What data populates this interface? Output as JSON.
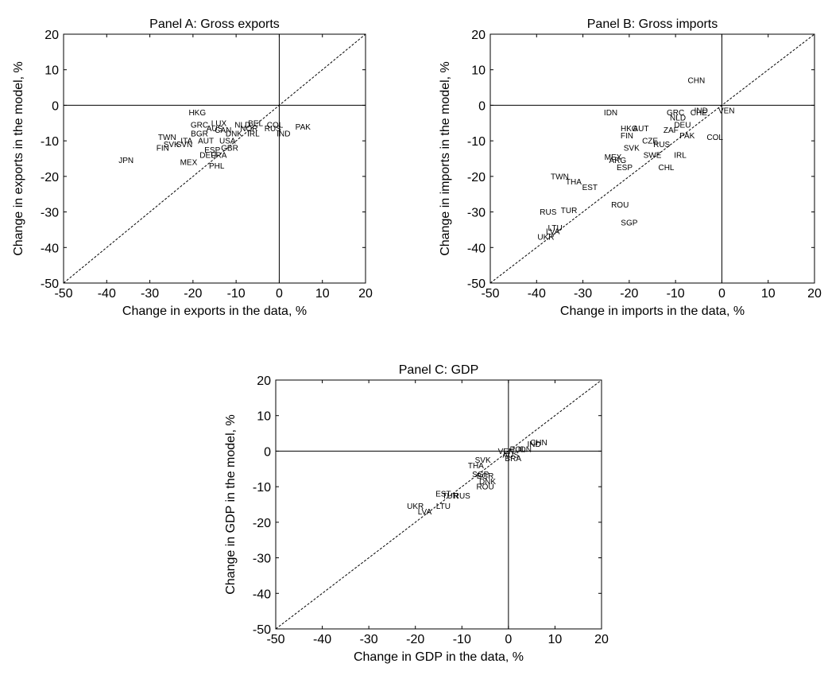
{
  "chart_data": [
    {
      "type": "scatter",
      "title": "Panel A: Gross exports",
      "xlabel": "Change in exports in the data, %",
      "ylabel": "Change in exports in the model, %",
      "xlim": [
        -50,
        20
      ],
      "ylim": [
        -50,
        20
      ],
      "xticks": [
        -50,
        -40,
        -30,
        -20,
        -10,
        0,
        10,
        20
      ],
      "yticks": [
        -50,
        -40,
        -30,
        -20,
        -10,
        0,
        10,
        20
      ],
      "reference_lines": [
        "y = x (dashed)",
        "x = 0",
        "y = 0"
      ],
      "points": [
        {
          "label": "JPN",
          "x": -35.5,
          "y": -15.5
        },
        {
          "label": "HKG",
          "x": -19,
          "y": -2
        },
        {
          "label": "GRC",
          "x": -18.5,
          "y": -5.5
        },
        {
          "label": "TWN",
          "x": -26,
          "y": -9
        },
        {
          "label": "FIN",
          "x": -27,
          "y": -12
        },
        {
          "label": "SVK",
          "x": -25,
          "y": -11
        },
        {
          "label": "SVN",
          "x": -22,
          "y": -11
        },
        {
          "label": "ITA",
          "x": -21.5,
          "y": -10
        },
        {
          "label": "BGR",
          "x": -18.5,
          "y": -8
        },
        {
          "label": "MEX",
          "x": -21,
          "y": -16
        },
        {
          "label": "PHL",
          "x": -14.5,
          "y": -17
        },
        {
          "label": "DEU",
          "x": -16.5,
          "y": -14
        },
        {
          "label": "LUX",
          "x": -14,
          "y": -5
        },
        {
          "label": "AUS",
          "x": -15,
          "y": -6.5
        },
        {
          "label": "CAN",
          "x": -13,
          "y": -7
        },
        {
          "label": "DNK",
          "x": -10.5,
          "y": -8
        },
        {
          "label": "NLD",
          "x": -8.5,
          "y": -5.5
        },
        {
          "label": "NOR",
          "x": -7,
          "y": -6.5
        },
        {
          "label": "BEL",
          "x": -5.5,
          "y": -5
        },
        {
          "label": "IRL",
          "x": -6,
          "y": -8
        },
        {
          "label": "COL",
          "x": -1,
          "y": -5.5
        },
        {
          "label": "RUS",
          "x": -1.5,
          "y": -6.5
        },
        {
          "label": "PAK",
          "x": 5.5,
          "y": -6
        },
        {
          "label": "IND",
          "x": 1,
          "y": -8
        },
        {
          "label": "USA",
          "x": -12,
          "y": -10
        },
        {
          "label": "GBR",
          "x": -11.5,
          "y": -12
        },
        {
          "label": "ESP",
          "x": -15.5,
          "y": -12.5
        },
        {
          "label": "FRA",
          "x": -14,
          "y": -14
        },
        {
          "label": "AUT",
          "x": -17,
          "y": -10
        }
      ]
    },
    {
      "type": "scatter",
      "title": "Panel B: Gross imports",
      "xlabel": "Change in imports in the data, %",
      "ylabel": "Change in imports in the model, %",
      "xlim": [
        -50,
        20
      ],
      "ylim": [
        -50,
        20
      ],
      "xticks": [
        -50,
        -40,
        -30,
        -20,
        -10,
        0,
        10,
        20
      ],
      "yticks": [
        -50,
        -40,
        -30,
        -20,
        -10,
        0,
        10,
        20
      ],
      "reference_lines": [
        "y = x (dashed)",
        "x = 0",
        "y = 0"
      ],
      "points": [
        {
          "label": "CHN",
          "x": -5.5,
          "y": 7
        },
        {
          "label": "IDN",
          "x": -24,
          "y": -2
        },
        {
          "label": "GRC",
          "x": -10,
          "y": -2
        },
        {
          "label": "IND",
          "x": -4.5,
          "y": -1.5
        },
        {
          "label": "CHE",
          "x": -5,
          "y": -2
        },
        {
          "label": "VEN",
          "x": 1,
          "y": -1.5
        },
        {
          "label": "NLD",
          "x": -9.5,
          "y": -3.5
        },
        {
          "label": "DEU",
          "x": -8.5,
          "y": -5.5
        },
        {
          "label": "HKG",
          "x": -20,
          "y": -6.5
        },
        {
          "label": "AUT",
          "x": -17.5,
          "y": -6.5
        },
        {
          "label": "FIN",
          "x": -20.5,
          "y": -8.5
        },
        {
          "label": "ZAF",
          "x": -11,
          "y": -7
        },
        {
          "label": "PAK",
          "x": -7.5,
          "y": -8.5
        },
        {
          "label": "COL",
          "x": -1.5,
          "y": -9
        },
        {
          "label": "CZE",
          "x": -15.5,
          "y": -10
        },
        {
          "label": "RUS",
          "x": -13,
          "y": -11
        },
        {
          "label": "SVK",
          "x": -19.5,
          "y": -12
        },
        {
          "label": "SWE",
          "x": -15,
          "y": -14
        },
        {
          "label": "IRL",
          "x": -9,
          "y": -14
        },
        {
          "label": "MEX",
          "x": -23.5,
          "y": -14.5
        },
        {
          "label": "ARG",
          "x": -22.5,
          "y": -15.5
        },
        {
          "label": "CHL",
          "x": -12,
          "y": -17.5
        },
        {
          "label": "ESP",
          "x": -21,
          "y": -17.5
        },
        {
          "label": "TWN",
          "x": -35,
          "y": -20
        },
        {
          "label": "THA",
          "x": -32,
          "y": -21.5
        },
        {
          "label": "EST",
          "x": -28.5,
          "y": -23
        },
        {
          "label": "ROU",
          "x": -22,
          "y": -28
        },
        {
          "label": "RUS",
          "x": -37.5,
          "y": -30
        },
        {
          "label": "TUR",
          "x": -33,
          "y": -29.5
        },
        {
          "label": "SGP",
          "x": -20,
          "y": -33
        },
        {
          "label": "LTU",
          "x": -36,
          "y": -34.5
        },
        {
          "label": "LVA",
          "x": -36.5,
          "y": -35.5
        },
        {
          "label": "UKR",
          "x": -38,
          "y": -37
        }
      ]
    },
    {
      "type": "scatter",
      "title": "Panel C: GDP",
      "xlabel": "Change in GDP in the data, %",
      "ylabel": "Change in GDP in the model, %",
      "xlim": [
        -50,
        20
      ],
      "ylim": [
        -50,
        20
      ],
      "xticks": [
        -50,
        -40,
        -30,
        -20,
        -10,
        0,
        10,
        20
      ],
      "yticks": [
        -50,
        -40,
        -30,
        -20,
        -10,
        0,
        10,
        20
      ],
      "reference_lines": [
        "y = x (dashed)",
        "x = 0",
        "y = 0"
      ],
      "points": [
        {
          "label": "CHN",
          "x": 6.5,
          "y": 2.5
        },
        {
          "label": "IND",
          "x": 5.5,
          "y": 2
        },
        {
          "label": "IDN",
          "x": 3.5,
          "y": 0.5
        },
        {
          "label": "POL",
          "x": 2,
          "y": 0.5
        },
        {
          "label": "VEN",
          "x": -0.5,
          "y": 0
        },
        {
          "label": "AUS",
          "x": 0.5,
          "y": -1
        },
        {
          "label": "BRA",
          "x": 1,
          "y": -2
        },
        {
          "label": "SVK",
          "x": -5.5,
          "y": -2.5
        },
        {
          "label": "THA",
          "x": -7,
          "y": -4
        },
        {
          "label": "SGP",
          "x": -6,
          "y": -6.5
        },
        {
          "label": "BGR",
          "x": -5,
          "y": -7
        },
        {
          "label": "DNK",
          "x": -4.5,
          "y": -8.5
        },
        {
          "label": "ROU",
          "x": -5,
          "y": -10
        },
        {
          "label": "EST",
          "x": -14,
          "y": -12
        },
        {
          "label": "TUR",
          "x": -12.5,
          "y": -12.5
        },
        {
          "label": "RUS",
          "x": -10,
          "y": -12.5
        },
        {
          "label": "UKR",
          "x": -20,
          "y": -15.5
        },
        {
          "label": "LVA",
          "x": -18,
          "y": -17
        },
        {
          "label": "LTU",
          "x": -14,
          "y": -15.5
        }
      ]
    }
  ]
}
